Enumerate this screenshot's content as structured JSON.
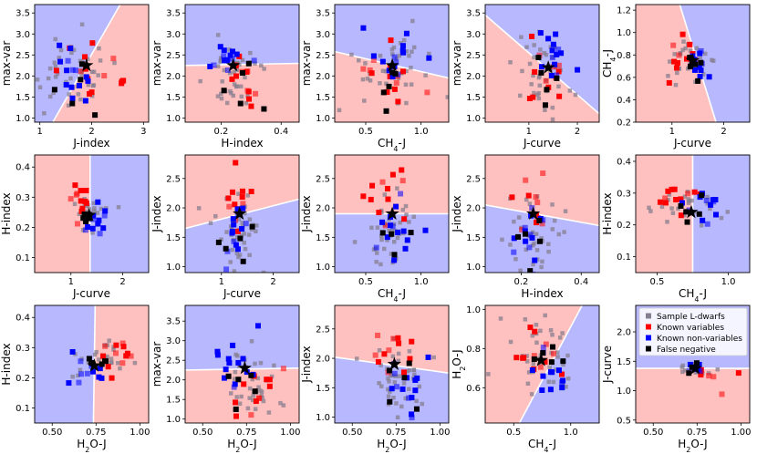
{
  "figure": {
    "legend": {
      "entries": [
        {
          "label": "Sample L-dwarfs",
          "color": "#8a8a8a"
        },
        {
          "label": "Known variables",
          "color": "#ff0000"
        },
        {
          "label": "Known non-variables",
          "color": "#0000ff"
        },
        {
          "label": "False negative",
          "color": "#000000"
        }
      ]
    },
    "colors": {
      "red_region": "#ffc0c0",
      "blue_region": "#b8b8ff"
    }
  },
  "chart_data": [
    {
      "type": "scatter",
      "xlabel": "J-index",
      "ylabel": "max-var",
      "xlim": [
        0.9,
        3.1
      ],
      "ylim": [
        0.9,
        3.7
      ],
      "xticks": [
        "1",
        "2",
        "3"
      ],
      "yticks": [
        "1.0",
        "1.5",
        "2.0",
        "2.5",
        "3.0",
        "3.5"
      ],
      "boundary": [
        [
          1.25,
          0.9
        ],
        [
          2.55,
          3.7
        ]
      ],
      "left_region": "blue",
      "star": [
        1.9,
        2.25
      ],
      "clusters": {
        "gray": [
          1.6,
          2.0,
          0.45,
          0.5,
          40
        ],
        "red": [
          2.0,
          2.1,
          0.3,
          0.4,
          14
        ],
        "blue": [
          1.6,
          2.0,
          0.3,
          0.35,
          14
        ],
        "black": [
          1.9,
          2.0,
          0.3,
          0.35,
          5
        ]
      }
    },
    {
      "type": "scatter",
      "xlabel": "H-index",
      "ylabel": "max-var",
      "xlim": [
        0.08,
        0.46
      ],
      "ylim": [
        0.9,
        3.7
      ],
      "xticks": [
        "0.2",
        "0.4"
      ],
      "yticks": [
        "1.0",
        "1.5",
        "2.0",
        "2.5",
        "3.0",
        "3.5"
      ],
      "boundary": [
        [
          0.08,
          2.25
        ],
        [
          0.46,
          2.3
        ]
      ],
      "above_region": "blue",
      "star": [
        0.24,
        2.25
      ],
      "clusters": {
        "gray": [
          0.25,
          2.0,
          0.05,
          0.5,
          40
        ],
        "red": [
          0.26,
          1.9,
          0.04,
          0.35,
          14
        ],
        "blue": [
          0.23,
          2.5,
          0.03,
          0.3,
          14
        ],
        "black": [
          0.27,
          1.8,
          0.04,
          0.3,
          5
        ]
      }
    },
    {
      "type": "scatter",
      "xlabel": "CH4-J",
      "ylabel": "max-var",
      "xlim": [
        0.22,
        1.25
      ],
      "ylim": [
        0.9,
        3.7
      ],
      "xticks": [
        "0.5",
        "1.0"
      ],
      "yticks": [
        "1.0",
        "1.5",
        "2.0",
        "2.5",
        "3.0",
        "3.5"
      ],
      "boundary": [
        [
          0.22,
          2.58
        ],
        [
          1.25,
          1.95
        ]
      ],
      "above_region": "blue",
      "star": [
        0.74,
        2.25
      ],
      "clusters": {
        "gray": [
          0.72,
          2.0,
          0.18,
          0.5,
          40
        ],
        "red": [
          0.7,
          1.9,
          0.12,
          0.35,
          14
        ],
        "blue": [
          0.78,
          2.4,
          0.12,
          0.3,
          14
        ],
        "black": [
          0.72,
          1.7,
          0.1,
          0.3,
          5
        ]
      }
    },
    {
      "type": "scatter",
      "xlabel": "J-curve",
      "ylabel": "max-var",
      "xlim": [
        0.1,
        2.45
      ],
      "ylim": [
        0.9,
        3.7
      ],
      "xticks": [
        "1",
        "2"
      ],
      "yticks": [
        "1.0",
        "1.5",
        "2.0",
        "2.5",
        "3.0",
        "3.5"
      ],
      "boundary": [
        [
          0.1,
          3.45
        ],
        [
          2.45,
          1.1
        ]
      ],
      "above_region": "blue",
      "star": [
        1.4,
        2.2
      ],
      "clusters": {
        "gray": [
          1.3,
          2.0,
          0.3,
          0.5,
          40
        ],
        "red": [
          1.2,
          1.9,
          0.25,
          0.4,
          12
        ],
        "blue": [
          1.6,
          2.5,
          0.2,
          0.35,
          14
        ],
        "black": [
          1.4,
          1.9,
          0.2,
          0.3,
          5
        ]
      }
    },
    {
      "type": "scatter",
      "xlabel": "J-curve",
      "ylabel": "CH4-J",
      "xlim": [
        0.3,
        2.5
      ],
      "ylim": [
        0.2,
        1.25
      ],
      "xticks": [
        "1",
        "2"
      ],
      "yticks": [
        "0.2",
        "0.4",
        "0.6",
        "0.8",
        "1.0",
        "1.2"
      ],
      "boundary": [
        [
          1.15,
          1.25
        ],
        [
          1.85,
          0.2
        ]
      ],
      "left_region": "red",
      "star": [
        1.4,
        0.75
      ],
      "clusters": {
        "gray": [
          1.35,
          0.72,
          0.2,
          0.1,
          30
        ],
        "red": [
          1.2,
          0.8,
          0.15,
          0.12,
          12
        ],
        "blue": [
          1.5,
          0.78,
          0.12,
          0.1,
          12
        ],
        "black": [
          1.4,
          0.72,
          0.1,
          0.08,
          5
        ]
      }
    },
    {
      "type": "scatter",
      "xlabel": "J-curve",
      "ylabel": "H-index",
      "xlim": [
        0.3,
        2.5
      ],
      "ylim": [
        0.05,
        0.44
      ],
      "xticks": [
        "1",
        "2"
      ],
      "yticks": [
        "0.1",
        "0.2",
        "0.3",
        "0.4"
      ],
      "boundary": [
        [
          1.37,
          0.05
        ],
        [
          1.37,
          0.44
        ]
      ],
      "left_region": "red",
      "star": [
        1.35,
        0.24
      ],
      "clusters": {
        "gray": [
          1.35,
          0.25,
          0.15,
          0.03,
          25
        ],
        "red": [
          1.2,
          0.28,
          0.12,
          0.03,
          12
        ],
        "blue": [
          1.5,
          0.22,
          0.12,
          0.03,
          12
        ],
        "black": [
          1.3,
          0.25,
          0.08,
          0.02,
          5
        ]
      }
    },
    {
      "type": "scatter",
      "xlabel": "J-curve",
      "ylabel": "J-index",
      "xlim": [
        0.3,
        2.5
      ],
      "ylim": [
        0.9,
        2.9
      ],
      "xticks": [
        "1",
        "2"
      ],
      "yticks": [
        "1.0",
        "1.5",
        "2.0",
        "2.5"
      ],
      "boundary": [
        [
          0.3,
          1.65
        ],
        [
          2.5,
          2.15
        ]
      ],
      "above_region": "red",
      "star": [
        1.35,
        1.9
      ],
      "clusters": {
        "gray": [
          1.3,
          1.6,
          0.22,
          0.35,
          40
        ],
        "red": [
          1.35,
          2.1,
          0.15,
          0.3,
          12
        ],
        "blue": [
          1.3,
          1.6,
          0.15,
          0.3,
          14
        ],
        "black": [
          1.35,
          1.4,
          0.15,
          0.25,
          5
        ]
      }
    },
    {
      "type": "scatter",
      "xlabel": "CH4-J",
      "ylabel": "J-index",
      "xlim": [
        0.22,
        1.25
      ],
      "ylim": [
        0.9,
        2.9
      ],
      "xticks": [
        "0.5",
        "1.0"
      ],
      "yticks": [
        "1.0",
        "1.5",
        "2.0",
        "2.5"
      ],
      "boundary": [
        [
          0.22,
          1.9
        ],
        [
          1.25,
          1.9
        ]
      ],
      "above_region": "red",
      "star": [
        0.74,
        1.9
      ],
      "clusters": {
        "gray": [
          0.72,
          1.6,
          0.15,
          0.35,
          40
        ],
        "red": [
          0.65,
          2.1,
          0.1,
          0.3,
          12
        ],
        "blue": [
          0.78,
          1.6,
          0.12,
          0.3,
          14
        ],
        "black": [
          0.75,
          1.4,
          0.12,
          0.3,
          5
        ]
      }
    },
    {
      "type": "scatter",
      "xlabel": "H-index",
      "ylabel": "J-index",
      "xlim": [
        0.08,
        0.46
      ],
      "ylim": [
        0.9,
        2.9
      ],
      "xticks": [
        "0.2",
        "0.4"
      ],
      "yticks": [
        "1.0",
        "1.5",
        "2.0",
        "2.5"
      ],
      "boundary": [
        [
          0.08,
          2.05
        ],
        [
          0.46,
          1.7
        ]
      ],
      "above_region": "red",
      "star": [
        0.24,
        1.9
      ],
      "clusters": {
        "gray": [
          0.25,
          1.6,
          0.05,
          0.35,
          40
        ],
        "red": [
          0.26,
          2.0,
          0.04,
          0.3,
          12
        ],
        "blue": [
          0.23,
          1.6,
          0.03,
          0.3,
          14
        ],
        "black": [
          0.25,
          1.5,
          0.04,
          0.3,
          5
        ]
      }
    },
    {
      "type": "scatter",
      "xlabel": "CH4-J",
      "ylabel": "H-index",
      "xlim": [
        0.35,
        1.15
      ],
      "ylim": [
        0.05,
        0.42
      ],
      "xticks": [
        "0.5",
        "1.0"
      ],
      "yticks": [
        "0.1",
        "0.2",
        "0.3",
        "0.4"
      ],
      "boundary": [
        [
          0.75,
          0.05
        ],
        [
          0.75,
          0.42
        ]
      ],
      "left_region": "red",
      "star": [
        0.74,
        0.24
      ],
      "clusters": {
        "gray": [
          0.72,
          0.26,
          0.12,
          0.03,
          25
        ],
        "red": [
          0.65,
          0.27,
          0.08,
          0.03,
          12
        ],
        "blue": [
          0.82,
          0.27,
          0.08,
          0.03,
          12
        ],
        "black": [
          0.75,
          0.26,
          0.06,
          0.03,
          5
        ]
      }
    },
    {
      "type": "scatter",
      "xlabel": "H2O-J",
      "ylabel": "H-index",
      "xlim": [
        0.4,
        1.05
      ],
      "ylim": [
        0.05,
        0.44
      ],
      "xticks": [
        "0.50",
        "0.75",
        "1.00"
      ],
      "yticks": [
        "0.1",
        "0.2",
        "0.3",
        "0.4"
      ],
      "boundary": [
        [
          0.735,
          0.05
        ],
        [
          0.745,
          0.44
        ]
      ],
      "left_region": "blue",
      "star": [
        0.74,
        0.24
      ],
      "clusters": {
        "gray": [
          0.78,
          0.27,
          0.08,
          0.03,
          25
        ],
        "red": [
          0.84,
          0.27,
          0.07,
          0.03,
          12
        ],
        "blue": [
          0.68,
          0.23,
          0.05,
          0.03,
          12
        ],
        "black": [
          0.76,
          0.25,
          0.05,
          0.02,
          5
        ]
      }
    },
    {
      "type": "scatter",
      "xlabel": "H2O-J",
      "ylabel": "max-var",
      "xlim": [
        0.4,
        1.05
      ],
      "ylim": [
        0.9,
        3.9
      ],
      "xticks": [
        "0.50",
        "0.75",
        "1.00"
      ],
      "yticks": [
        "1.0",
        "1.5",
        "2.0",
        "2.5",
        "3.0",
        "3.5"
      ],
      "boundary": [
        [
          0.4,
          2.25
        ],
        [
          1.05,
          2.3
        ]
      ],
      "above_region": "blue",
      "star": [
        0.74,
        2.3
      ],
      "clusters": {
        "gray": [
          0.76,
          2.0,
          0.08,
          0.5,
          40
        ],
        "red": [
          0.82,
          1.8,
          0.08,
          0.35,
          12
        ],
        "blue": [
          0.72,
          2.5,
          0.06,
          0.35,
          14
        ],
        "black": [
          0.75,
          1.8,
          0.05,
          0.3,
          5
        ]
      }
    },
    {
      "type": "scatter",
      "xlabel": "H2O-J",
      "ylabel": "J-index",
      "xlim": [
        0.4,
        1.05
      ],
      "ylim": [
        0.9,
        2.9
      ],
      "xticks": [
        "0.50",
        "0.75",
        "1.00"
      ],
      "yticks": [
        "1.0",
        "1.5",
        "2.0",
        "2.5"
      ],
      "boundary": [
        [
          0.4,
          2.02
        ],
        [
          1.05,
          1.75
        ]
      ],
      "above_region": "red",
      "star": [
        0.74,
        1.9
      ],
      "clusters": {
        "gray": [
          0.75,
          1.6,
          0.08,
          0.35,
          40
        ],
        "red": [
          0.72,
          2.0,
          0.06,
          0.3,
          12
        ],
        "blue": [
          0.78,
          1.6,
          0.07,
          0.3,
          14
        ],
        "black": [
          0.75,
          1.5,
          0.05,
          0.3,
          5
        ]
      }
    },
    {
      "type": "scatter",
      "xlabel": "CH4-J",
      "ylabel": "H2O-J",
      "xlim": [
        0.25,
        1.25
      ],
      "ylim": [
        0.42,
        1.02
      ],
      "xticks": [
        "0.5",
        "1.0"
      ],
      "yticks": [
        "0.6",
        "0.8",
        "1.0"
      ],
      "boundary": [
        [
          0.55,
          0.42
        ],
        [
          1.1,
          1.02
        ]
      ],
      "left_region": "red",
      "star": [
        0.74,
        0.74
      ],
      "clusters": {
        "gray": [
          0.75,
          0.75,
          0.15,
          0.1,
          40
        ],
        "red": [
          0.7,
          0.78,
          0.1,
          0.08,
          12
        ],
        "blue": [
          0.8,
          0.7,
          0.1,
          0.07,
          12
        ],
        "black": [
          0.78,
          0.75,
          0.08,
          0.06,
          5
        ]
      }
    },
    {
      "type": "scatter",
      "xlabel": "H2O-J",
      "ylabel": "J-curve",
      "xlim": [
        0.4,
        1.05
      ],
      "ylim": [
        0.45,
        2.45
      ],
      "xticks": [
        "0.50",
        "0.75",
        "1.00"
      ],
      "yticks": [
        "0.5",
        "1.0",
        "1.5",
        "2.0"
      ],
      "boundary": [
        [
          0.4,
          1.38
        ],
        [
          1.05,
          1.38
        ]
      ],
      "above_region": "blue",
      "star": [
        0.74,
        1.38
      ],
      "clusters": {
        "gray": [
          0.76,
          1.35,
          0.06,
          0.08,
          15
        ],
        "red": [
          0.82,
          1.2,
          0.08,
          0.12,
          6
        ],
        "blue": [
          0.78,
          1.4,
          0.06,
          0.06,
          6
        ],
        "black": [
          0.74,
          1.35,
          0.04,
          0.05,
          3
        ]
      }
    }
  ]
}
